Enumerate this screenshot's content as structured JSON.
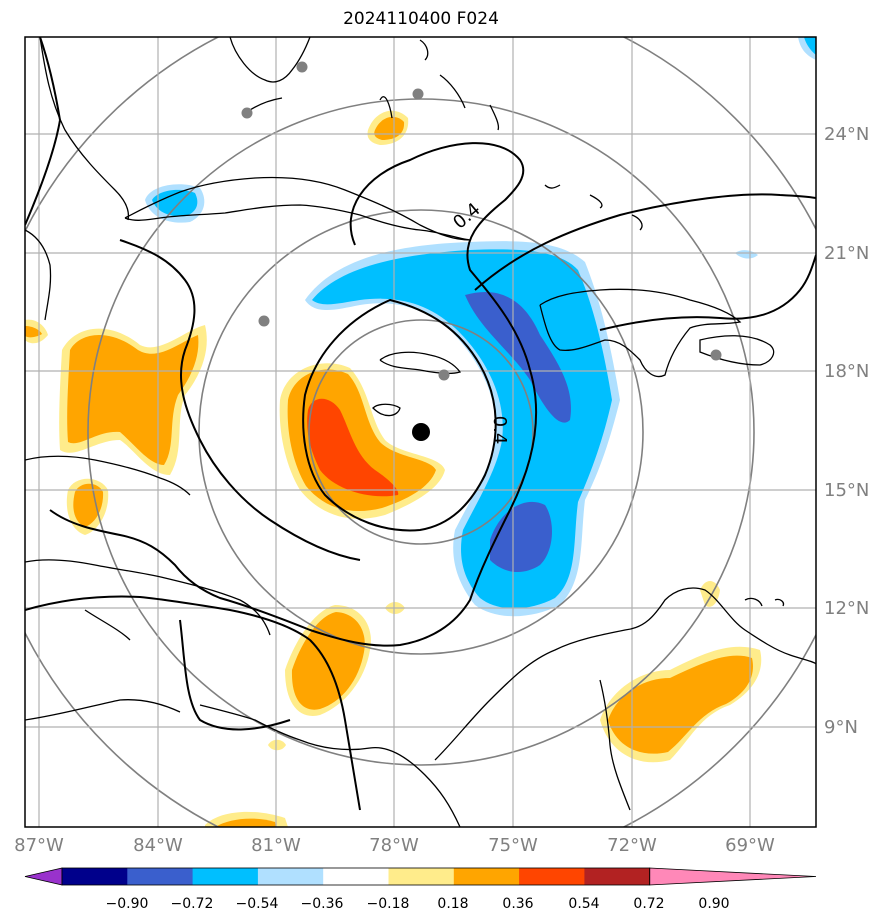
{
  "title": "2024110400 F024",
  "map": {
    "lon_labels": [
      "87°W",
      "84°W",
      "81°W",
      "78°W",
      "75°W",
      "72°W",
      "69°W"
    ],
    "lat_labels": [
      "24°N",
      "21°N",
      "18°N",
      "15°N",
      "12°N",
      "9°N"
    ],
    "contour_labels": [
      "0.4",
      "0.4"
    ],
    "storm_center": {
      "lon": -77.3,
      "lat": 16.4
    },
    "colors": {
      "range_rings": "#808080",
      "coastline": "#000000",
      "gridlines": "#b0b0b0"
    }
  },
  "colorbar": {
    "labels": [
      "−0.90",
      "−0.72",
      "−0.54",
      "−0.36",
      "−0.18",
      "0.18",
      "0.36",
      "0.54",
      "0.72",
      "0.90"
    ],
    "colors": [
      "#9932cc",
      "#00008b",
      "#3a5fcd",
      "#00bfff",
      "#b0e0ff",
      "#ffffff",
      "#ffec8b",
      "#ffa500",
      "#ff4500",
      "#b22222",
      "#ff88b8"
    ]
  }
}
